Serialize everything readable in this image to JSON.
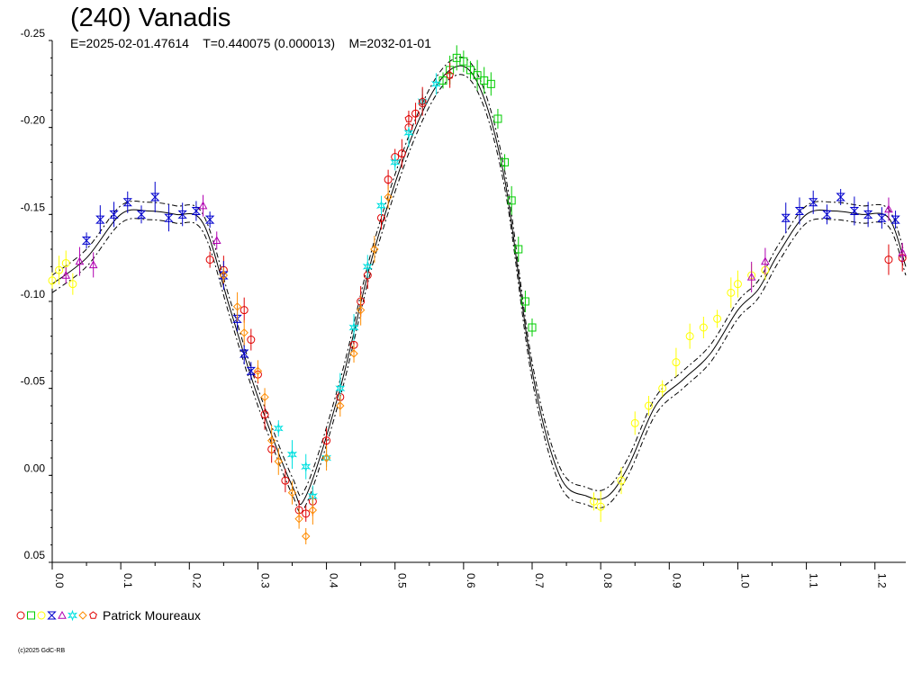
{
  "title": "(240) Vanadis",
  "subtitle": "E=2025-02-01.47614    T=0.440075 (0.000013)    M=2032-01-01",
  "legend": {
    "observer": "Patrick Moureaux",
    "markers": [
      {
        "shape": "circle",
        "color": "#e00000"
      },
      {
        "shape": "square",
        "color": "#00cc00"
      },
      {
        "shape": "circle",
        "color": "#ffff00"
      },
      {
        "shape": "bowtie",
        "color": "#0000cc"
      },
      {
        "shape": "triangle",
        "color": "#b000b0"
      },
      {
        "shape": "star",
        "color": "#00e0e0"
      },
      {
        "shape": "diamond",
        "color": "#ff8c00"
      },
      {
        "shape": "pentagon",
        "color": "#e00000"
      }
    ]
  },
  "copyright": "(c)2025 GdC-RB",
  "chart_data": {
    "type": "scatter",
    "title": "(240) Vanadis",
    "xlabel": "",
    "ylabel": "",
    "xlim": [
      0,
      1.245
    ],
    "ylim": [
      0.05,
      -0.25
    ],
    "y_inverted": true,
    "x_ticks": [
      "0.0",
      "0.1",
      "0.2",
      "0.3",
      "0.4",
      "0.5",
      "0.6",
      "0.7",
      "0.8",
      "0.9",
      "1.0",
      "1.1",
      "1.2"
    ],
    "y_ticks": [
      "-0.25",
      "-0.20",
      "-0.15",
      "-0.10",
      "-0.05",
      "0.00",
      "0.05"
    ],
    "fit_curve": {
      "phase": [
        0.0,
        0.05,
        0.1,
        0.14,
        0.18,
        0.22,
        0.26,
        0.3,
        0.35,
        0.37,
        0.42,
        0.47,
        0.53,
        0.58,
        0.62,
        0.66,
        0.7,
        0.74,
        0.78,
        0.81,
        0.84,
        0.88,
        0.92,
        0.96,
        1.0,
        1.03,
        1.06,
        1.1,
        1.14,
        1.18,
        1.22,
        1.245
      ],
      "mag": [
        -0.11,
        -0.125,
        -0.15,
        -0.152,
        -0.15,
        -0.145,
        -0.095,
        -0.045,
        0.006,
        0.012,
        -0.05,
        -0.13,
        -0.2,
        -0.233,
        -0.226,
        -0.17,
        -0.06,
        0.0,
        0.012,
        0.012,
        -0.005,
        -0.04,
        -0.055,
        -0.07,
        -0.095,
        -0.107,
        -0.128,
        -0.15,
        -0.152,
        -0.15,
        -0.148,
        -0.12
      ],
      "envelope_offset": 0.005
    },
    "series": [
      {
        "marker": "circle",
        "color": "#e00000",
        "points": [
          [
            0.23,
            -0.124
          ],
          [
            0.25,
            -0.118
          ],
          [
            0.28,
            -0.095
          ],
          [
            0.29,
            -0.078
          ],
          [
            0.3,
            -0.058
          ],
          [
            0.31,
            -0.035
          ],
          [
            0.32,
            -0.015
          ],
          [
            0.34,
            0.003
          ],
          [
            0.36,
            0.02
          ],
          [
            0.37,
            0.022
          ],
          [
            0.38,
            0.015
          ],
          [
            0.4,
            -0.02
          ],
          [
            0.42,
            -0.045
          ],
          [
            0.44,
            -0.075
          ],
          [
            0.45,
            -0.1
          ],
          [
            0.46,
            -0.115
          ],
          [
            0.48,
            -0.148
          ],
          [
            0.49,
            -0.17
          ],
          [
            0.5,
            -0.183
          ],
          [
            0.51,
            -0.185
          ],
          [
            0.52,
            -0.2
          ],
          [
            0.53,
            -0.208
          ],
          [
            0.54,
            -0.214
          ],
          [
            1.22,
            -0.124
          ],
          [
            1.24,
            -0.125
          ]
        ]
      },
      {
        "marker": "square",
        "color": "#00cc00",
        "points": [
          [
            0.57,
            -0.227
          ],
          [
            0.58,
            -0.233
          ],
          [
            0.59,
            -0.24
          ],
          [
            0.6,
            -0.238
          ],
          [
            0.61,
            -0.233
          ],
          [
            0.62,
            -0.23
          ],
          [
            0.63,
            -0.227
          ],
          [
            0.64,
            -0.225
          ],
          [
            0.65,
            -0.205
          ],
          [
            0.66,
            -0.18
          ],
          [
            0.67,
            -0.158
          ],
          [
            0.68,
            -0.13
          ],
          [
            0.69,
            -0.1
          ],
          [
            0.7,
            -0.085
          ]
        ]
      },
      {
        "marker": "circle",
        "color": "#ffff00",
        "points": [
          [
            0.0,
            -0.112
          ],
          [
            0.01,
            -0.118
          ],
          [
            0.02,
            -0.122
          ],
          [
            0.03,
            -0.11
          ],
          [
            0.79,
            0.015
          ],
          [
            0.8,
            0.018
          ],
          [
            0.83,
            0.003
          ],
          [
            0.85,
            -0.03
          ],
          [
            0.87,
            -0.04
          ],
          [
            0.89,
            -0.05
          ],
          [
            0.91,
            -0.065
          ],
          [
            0.93,
            -0.08
          ],
          [
            0.95,
            -0.085
          ],
          [
            0.97,
            -0.09
          ],
          [
            0.99,
            -0.105
          ],
          [
            1.0,
            -0.11
          ],
          [
            1.02,
            -0.115
          ],
          [
            1.04,
            -0.118
          ]
        ]
      },
      {
        "marker": "bowtie",
        "color": "#0000cc",
        "points": [
          [
            0.05,
            -0.135
          ],
          [
            0.07,
            -0.147
          ],
          [
            0.09,
            -0.15
          ],
          [
            0.11,
            -0.157
          ],
          [
            0.13,
            -0.15
          ],
          [
            0.15,
            -0.16
          ],
          [
            0.17,
            -0.148
          ],
          [
            0.19,
            -0.15
          ],
          [
            0.21,
            -0.152
          ],
          [
            0.23,
            -0.147
          ],
          [
            0.25,
            -0.115
          ],
          [
            0.27,
            -0.09
          ],
          [
            0.28,
            -0.07
          ],
          [
            0.29,
            -0.06
          ],
          [
            1.07,
            -0.148
          ],
          [
            1.09,
            -0.152
          ],
          [
            1.11,
            -0.157
          ],
          [
            1.13,
            -0.15
          ],
          [
            1.15,
            -0.16
          ],
          [
            1.17,
            -0.152
          ],
          [
            1.19,
            -0.15
          ],
          [
            1.21,
            -0.148
          ],
          [
            1.23,
            -0.147
          ]
        ]
      },
      {
        "marker": "triangle",
        "color": "#b000b0",
        "points": [
          [
            0.02,
            -0.115
          ],
          [
            0.04,
            -0.123
          ],
          [
            0.06,
            -0.121
          ],
          [
            0.22,
            -0.155
          ],
          [
            0.24,
            -0.135
          ],
          [
            1.02,
            -0.114
          ],
          [
            1.04,
            -0.123
          ],
          [
            1.22,
            -0.153
          ],
          [
            1.24,
            -0.128
          ]
        ]
      },
      {
        "marker": "star",
        "color": "#00e0e0",
        "points": [
          [
            0.33,
            -0.027
          ],
          [
            0.35,
            -0.012
          ],
          [
            0.37,
            -0.005
          ],
          [
            0.38,
            0.012
          ],
          [
            0.4,
            -0.01
          ],
          [
            0.42,
            -0.05
          ],
          [
            0.44,
            -0.085
          ],
          [
            0.46,
            -0.12
          ],
          [
            0.48,
            -0.155
          ],
          [
            0.5,
            -0.18
          ],
          [
            0.52,
            -0.197
          ],
          [
            0.54,
            -0.215
          ],
          [
            0.56,
            -0.225
          ]
        ]
      },
      {
        "marker": "diamond",
        "color": "#ff8c00",
        "points": [
          [
            0.25,
            -0.115
          ],
          [
            0.27,
            -0.097
          ],
          [
            0.28,
            -0.082
          ],
          [
            0.3,
            -0.06
          ],
          [
            0.31,
            -0.045
          ],
          [
            0.32,
            -0.02
          ],
          [
            0.33,
            -0.008
          ],
          [
            0.35,
            0.01
          ],
          [
            0.36,
            0.025
          ],
          [
            0.37,
            0.035
          ],
          [
            0.38,
            0.02
          ],
          [
            0.4,
            -0.01
          ],
          [
            0.42,
            -0.04
          ],
          [
            0.44,
            -0.07
          ],
          [
            0.45,
            -0.095
          ],
          [
            0.47,
            -0.13
          ],
          [
            0.49,
            -0.16
          ]
        ]
      },
      {
        "marker": "pentagon",
        "color": "#e00000",
        "points": [
          [
            0.52,
            -0.205
          ],
          [
            0.54,
            -0.215
          ],
          [
            0.58,
            -0.23
          ]
        ]
      }
    ]
  }
}
